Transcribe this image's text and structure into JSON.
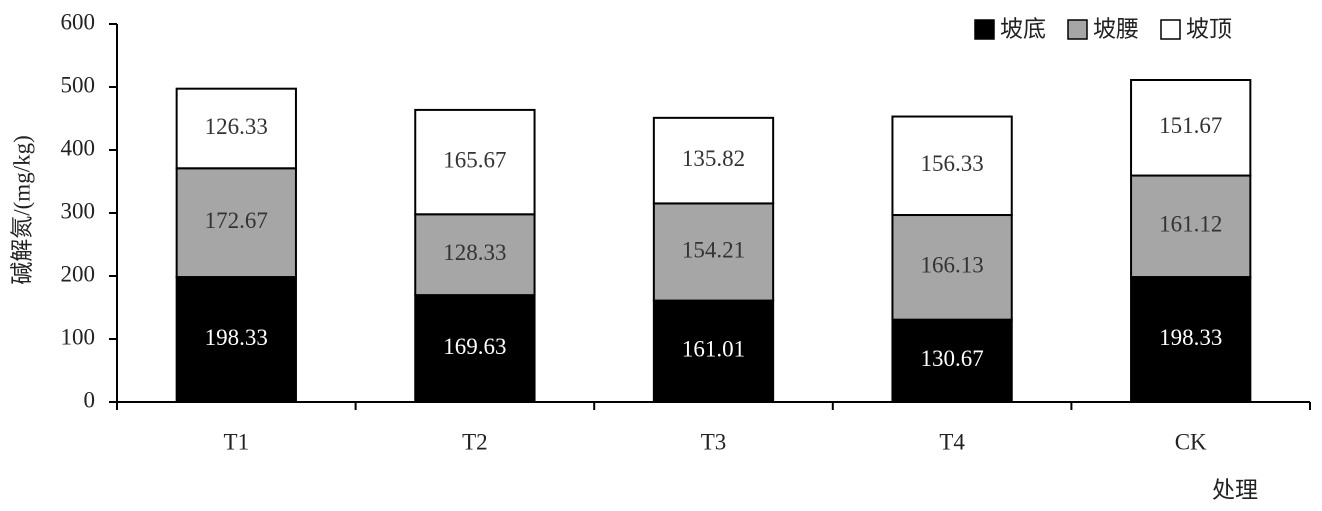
{
  "chart_data": {
    "type": "bar",
    "stacked": true,
    "x_label": "处理",
    "y_label": "碱解氮/(mg/kg)",
    "categories": [
      "T1",
      "T2",
      "T3",
      "T4",
      "CK"
    ],
    "series": [
      {
        "name": "坡底",
        "color": "#000000",
        "values": [
          198.33,
          169.63,
          161.01,
          130.67,
          198.33
        ]
      },
      {
        "name": "坡腰",
        "color": "#a6a6a6",
        "values": [
          172.67,
          128.33,
          154.21,
          166.13,
          161.12
        ]
      },
      {
        "name": "坡顶",
        "color": "#ffffff",
        "values": [
          126.33,
          165.67,
          135.82,
          156.33,
          151.67
        ]
      }
    ],
    "ylim": [
      0,
      600
    ],
    "yticks": [
      0,
      100,
      200,
      300,
      400,
      500,
      600
    ],
    "legend": "top-right"
  }
}
